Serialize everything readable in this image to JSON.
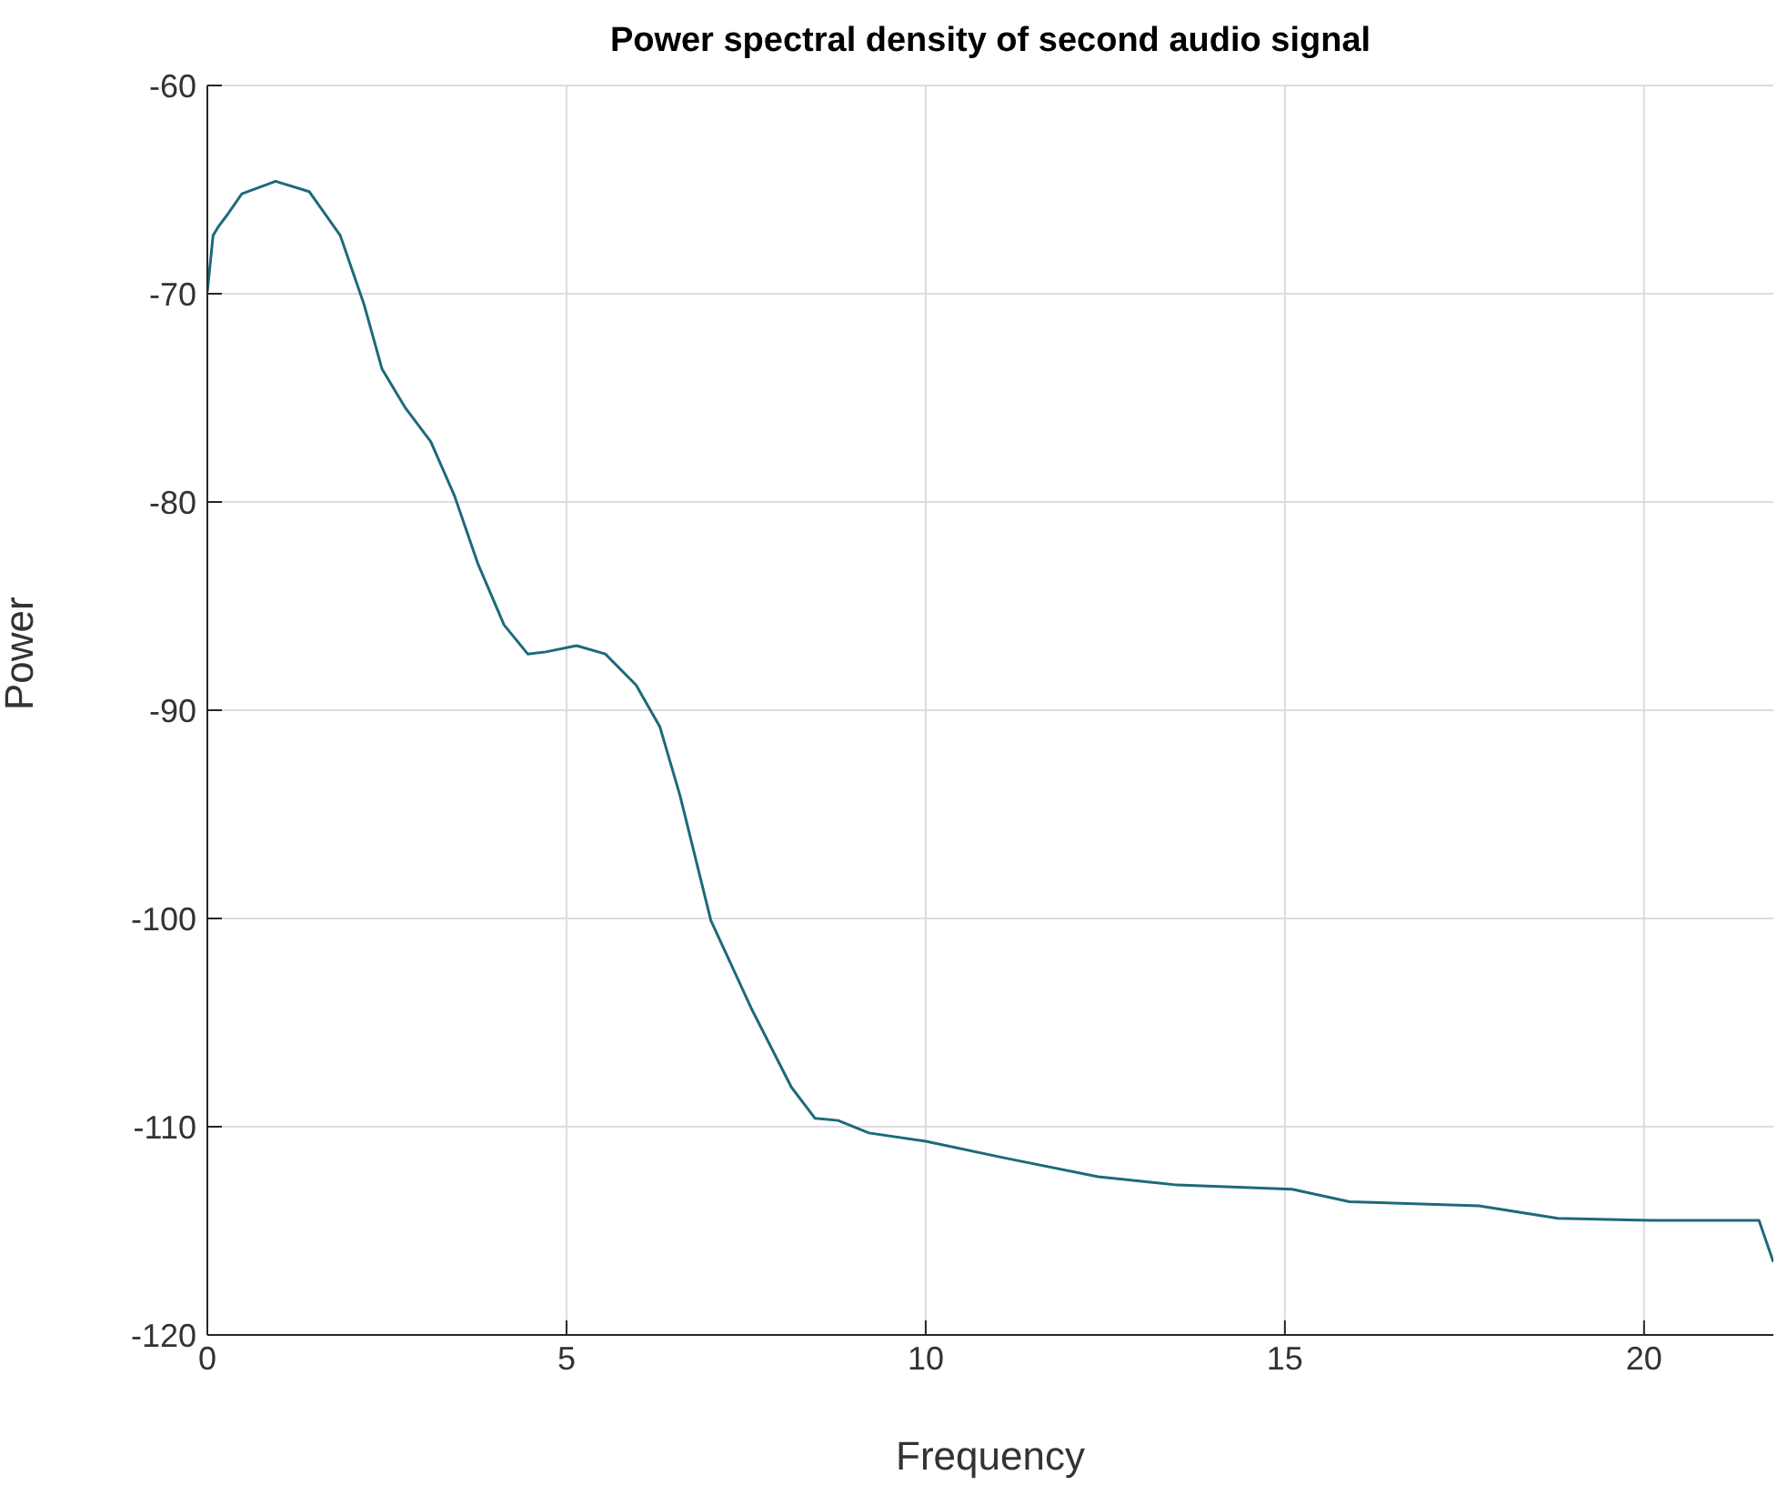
{
  "chart_data": {
    "type": "line",
    "title": "Power spectral density of second audio signal",
    "xlabel": "Frequency",
    "ylabel": "Power",
    "x": [
      0,
      0.08,
      0.15,
      0.28,
      0.48,
      0.95,
      1.42,
      1.85,
      2.18,
      2.43,
      2.76,
      3.11,
      3.44,
      3.77,
      4.13,
      4.46,
      4.71,
      5.14,
      5.54,
      5.97,
      6.3,
      6.58,
      7.01,
      7.57,
      8.13,
      8.46,
      8.78,
      9.21,
      10.0,
      11.1,
      12.4,
      13.5,
      15.1,
      15.9,
      17.7,
      18.8,
      20.1,
      21.6,
      21.8
    ],
    "series": [
      {
        "color": "#1d6a7a",
        "values": [
          -69.9,
          -67.2,
          -66.8,
          -66.2,
          -65.2,
          -64.6,
          -65.1,
          -67.2,
          -70.5,
          -73.6,
          -75.5,
          -77.1,
          -79.7,
          -83.0,
          -85.9,
          -87.3,
          -87.2,
          -86.9,
          -87.3,
          -88.8,
          -90.8,
          -94.1,
          -100.1,
          -104.3,
          -108.1,
          -109.6,
          -109.7,
          -110.3,
          -110.7,
          -111.5,
          -112.4,
          -112.8,
          -113.0,
          -113.6,
          -113.8,
          -114.4,
          -114.5,
          -114.5,
          -116.5
        ]
      }
    ],
    "xlim": [
      0,
      21.8
    ],
    "xticks": [
      0,
      5,
      10,
      15,
      20
    ],
    "ylim": [
      -120,
      -60
    ],
    "yticks": [
      -120,
      -110,
      -100,
      -90,
      -80,
      -70,
      -60
    ],
    "grid": true,
    "marker": "none",
    "line_style": "solid"
  }
}
